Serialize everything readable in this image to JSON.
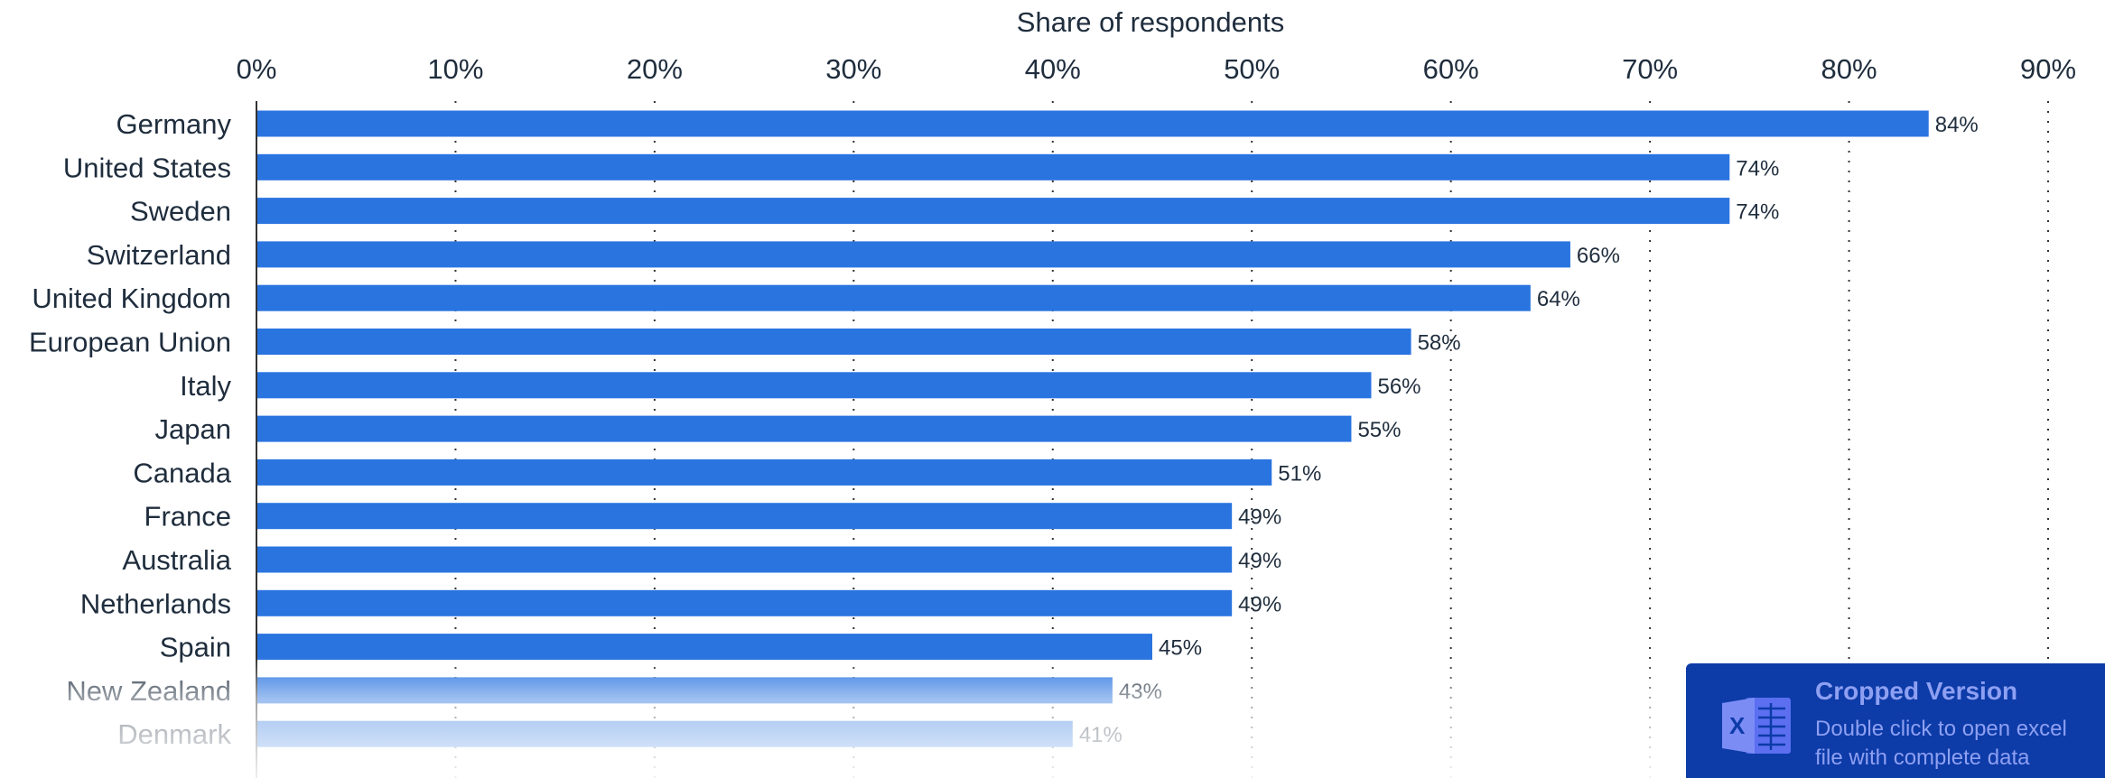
{
  "chart_data": {
    "type": "bar",
    "orientation": "horizontal",
    "xlabel": "Share of respondents",
    "ylabel": "",
    "xlim": [
      0,
      90
    ],
    "x_ticks": [
      "0%",
      "10%",
      "20%",
      "30%",
      "40%",
      "50%",
      "60%",
      "70%",
      "80%",
      "90%"
    ],
    "grid": true,
    "categories": [
      "Germany",
      "United States",
      "Sweden",
      "Switzerland",
      "United Kingdom",
      "European Union",
      "Italy",
      "Japan",
      "Canada",
      "France",
      "Australia",
      "Netherlands",
      "Spain",
      "New Zealand",
      "Denmark"
    ],
    "values": [
      84,
      74,
      74,
      66,
      64,
      58,
      56,
      55,
      51,
      49,
      49,
      49,
      45,
      43,
      41
    ],
    "value_labels": [
      "84%",
      "74%",
      "74%",
      "66%",
      "64%",
      "58%",
      "56%",
      "55%",
      "51%",
      "49%",
      "49%",
      "49%",
      "45%",
      "43%",
      "41%"
    ],
    "bar_color": "#2a74e0"
  },
  "badge": {
    "title": "Cropped Version",
    "subtitle": "Double click to open excel file with complete data",
    "icon": "excel-file-icon",
    "color": "#0d3ba8"
  }
}
